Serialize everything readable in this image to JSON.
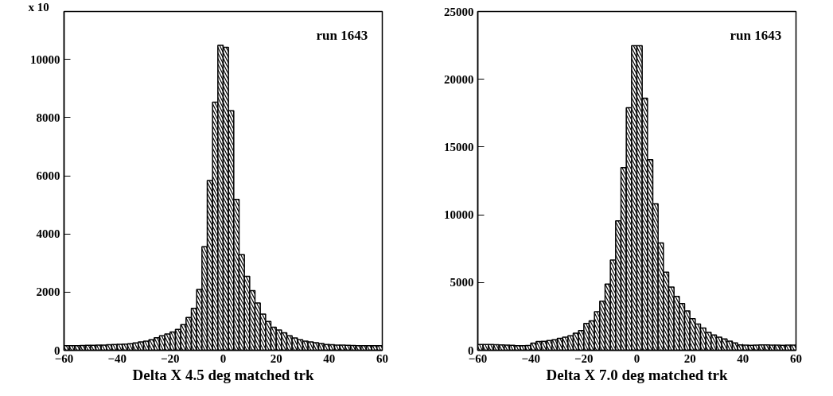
{
  "chart_data": [
    {
      "type": "histogram",
      "xlabel": "Delta X 4.5 deg matched trk",
      "annotations": [
        "x 10",
        "run  1643"
      ],
      "color": "#000000",
      "bins": [
        -60,
        -58,
        -56,
        -54,
        -52,
        -50,
        -48,
        -46,
        -44,
        -42,
        -40,
        -38,
        -36,
        -34,
        -32,
        -30,
        -28,
        -26,
        -24,
        -22,
        -20,
        -18,
        -16,
        -14,
        -12,
        -10,
        -8,
        -6,
        -4,
        -2,
        0,
        2,
        4,
        6,
        8,
        10,
        12,
        14,
        16,
        18,
        20,
        22,
        24,
        26,
        28,
        30,
        32,
        34,
        36,
        38,
        40,
        42,
        44,
        46,
        48,
        50,
        52,
        54,
        56,
        58,
        60
      ],
      "values": [
        160,
        160,
        160,
        165,
        170,
        170,
        175,
        180,
        190,
        200,
        205,
        215,
        225,
        250,
        290,
        315,
        360,
        430,
        500,
        560,
        630,
        720,
        885,
        1130,
        1445,
        2090,
        3565,
        5840,
        8530,
        10490,
        10420,
        8240,
        5190,
        3290,
        2545,
        2050,
        1625,
        1245,
        990,
        795,
        700,
        605,
        500,
        425,
        360,
        315,
        290,
        260,
        235,
        200,
        190,
        180,
        175,
        170,
        165,
        160,
        160,
        160,
        160,
        160
      ],
      "xlim": [
        -60,
        60
      ],
      "xticks": [
        -60,
        -40,
        -20,
        0,
        20,
        40,
        60
      ],
      "ylim": [
        0,
        11650
      ],
      "yticks": [
        0,
        2000,
        4000,
        6000,
        8000,
        10000
      ],
      "grid": false
    },
    {
      "type": "histogram",
      "xlabel": "Delta X 7.0 deg matched trk",
      "annotations": [
        "run  1643"
      ],
      "color": "#000000",
      "bins": [
        -60,
        -58,
        -56,
        -54,
        -52,
        -50,
        -48,
        -46,
        -44,
        -42,
        -40,
        -38,
        -36,
        -34,
        -32,
        -30,
        -28,
        -26,
        -24,
        -22,
        -20,
        -18,
        -16,
        -14,
        -12,
        -10,
        -8,
        -6,
        -4,
        -2,
        0,
        2,
        4,
        6,
        8,
        10,
        12,
        14,
        16,
        18,
        20,
        22,
        24,
        26,
        28,
        30,
        32,
        34,
        36,
        38,
        40,
        42,
        44,
        46,
        48,
        50,
        52,
        54,
        56,
        58,
        60
      ],
      "values": [
        430,
        420,
        420,
        410,
        400,
        380,
        360,
        340,
        340,
        350,
        525,
        640,
        660,
        720,
        775,
        875,
        970,
        1070,
        1260,
        1455,
        1980,
        2175,
        2850,
        3630,
        4890,
        6660,
        9550,
        13490,
        17900,
        22480,
        22480,
        18600,
        14070,
        10810,
        7920,
        5765,
        4660,
        3980,
        3455,
        2910,
        2330,
        1940,
        1650,
        1320,
        1125,
        970,
        835,
        680,
        545,
        390,
        380,
        370,
        380,
        390,
        400,
        385,
        375,
        370,
        380,
        380
      ],
      "xlim": [
        -60,
        60
      ],
      "xticks": [
        -60,
        -40,
        -20,
        0,
        20,
        40,
        60
      ],
      "ylim": [
        0,
        25000
      ],
      "yticks": [
        0,
        5000,
        10000,
        15000,
        20000,
        25000
      ],
      "grid": false
    }
  ]
}
